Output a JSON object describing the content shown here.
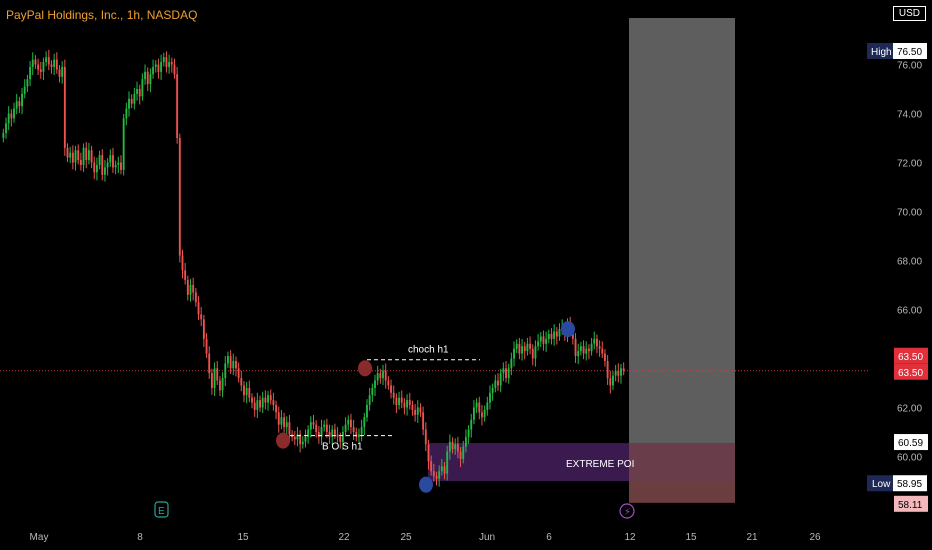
{
  "header": {
    "title": "PayPal Holdings, Inc., 1h, NASDAQ",
    "currency": "USD"
  },
  "chart_data": {
    "type": "candlestick",
    "title": "PayPal Holdings, Inc., 1h, NASDAQ",
    "y_ticks": [
      76.0,
      74.0,
      72.0,
      70.0,
      68.0,
      66.0,
      64.0,
      62.0,
      60.0
    ],
    "ylim": [
      57.5,
      77.5
    ],
    "x_ticks": [
      "May",
      "8",
      "15",
      "22",
      "25",
      "Jun",
      "6",
      "12",
      "15",
      "21",
      "26"
    ],
    "grid": false,
    "close": [
      73.2,
      73.6,
      74.0,
      73.8,
      74.2,
      74.5,
      74.3,
      74.8,
      75.1,
      75.4,
      75.9,
      76.2,
      76.0,
      75.8,
      75.7,
      76.1,
      76.3,
      76.0,
      75.9,
      76.2,
      75.8,
      75.5,
      75.9,
      72.6,
      72.2,
      72.4,
      72.0,
      72.5,
      72.1,
      71.9,
      72.6,
      72.1,
      72.5,
      72.0,
      71.6,
      71.9,
      72.3,
      71.5,
      71.8,
      72.0,
      72.3,
      71.8,
      71.9,
      72.0,
      71.7,
      73.8,
      74.2,
      74.6,
      74.4,
      74.8,
      75.0,
      74.7,
      75.4,
      75.7,
      75.2,
      75.6,
      75.9,
      76.0,
      75.7,
      76.1,
      76.3,
      75.9,
      76.1,
      76.0,
      75.6,
      73.0,
      68.2,
      67.6,
      67.2,
      66.6,
      67.0,
      66.7,
      66.3,
      65.8,
      65.6,
      64.8,
      64.2,
      63.4,
      62.8,
      63.6,
      63.1,
      62.7,
      63.2,
      63.8,
      64.1,
      63.6,
      63.9,
      63.6,
      63.2,
      62.9,
      62.5,
      62.8,
      62.4,
      62.2,
      61.9,
      62.3,
      62.0,
      62.4,
      62.2,
      62.5,
      62.3,
      62.1,
      61.8,
      61.3,
      61.6,
      61.2,
      61.4,
      60.9,
      60.8,
      60.7,
      60.9,
      60.5,
      60.6,
      60.8,
      61.1,
      61.4,
      61.3,
      61.0,
      60.8,
      61.2,
      61.3,
      61.0,
      60.8,
      61.1,
      60.9,
      60.8,
      60.6,
      61.0,
      61.3,
      61.5,
      61.2,
      61.0,
      60.8,
      60.9,
      61.2,
      61.6,
      62.1,
      62.5,
      62.8,
      63.1,
      63.4,
      63.2,
      63.5,
      63.1,
      62.9,
      62.6,
      62.4,
      62.1,
      62.4,
      62.2,
      62.0,
      62.3,
      62.1,
      61.9,
      61.7,
      62.0,
      61.8,
      61.1,
      60.5,
      59.8,
      59.4,
      59.2,
      59.1,
      59.4,
      59.6,
      59.3,
      60.2,
      60.6,
      60.3,
      60.5,
      60.2,
      59.9,
      60.4,
      60.8,
      61.1,
      61.5,
      62.0,
      62.2,
      61.8,
      61.6,
      61.9,
      62.2,
      62.6,
      62.8,
      63.1,
      62.9,
      63.4,
      63.6,
      63.2,
      63.6,
      64.0,
      64.4,
      64.6,
      64.2,
      64.5,
      64.3,
      64.6,
      64.4,
      64.0,
      64.5,
      64.7,
      64.9,
      64.6,
      64.8,
      65.0,
      64.8,
      65.1,
      64.9,
      65.2,
      65.3,
      65.0,
      65.4,
      65.2,
      64.8,
      64.1,
      64.3,
      64.5,
      64.2,
      64.4,
      64.3,
      64.6,
      64.8,
      64.5,
      64.4,
      64.2,
      63.9,
      63.2,
      62.9,
      63.3,
      63.5,
      63.3,
      63.6,
      63.5
    ],
    "open_first": 73.0,
    "markers": [
      {
        "label": "choch h1",
        "level": 63.95
      },
      {
        "label": "B O S h1",
        "level": 60.85
      },
      {
        "label": "EXTREME POI",
        "top": 60.55,
        "bottom": 59.0
      },
      {
        "label": "High",
        "value": "76.50"
      },
      {
        "label": "Low",
        "value": "58.95"
      }
    ],
    "price_tags": [
      "63.50",
      "63.50",
      "60.59",
      "58.11"
    ],
    "colors": {
      "up": "#26a69a",
      "down": "#ef5350",
      "upBright": "#22bb44",
      "poi": "#3a1a4f",
      "box": "#5e5e5e",
      "boxLow": "#6a3e3e"
    }
  }
}
